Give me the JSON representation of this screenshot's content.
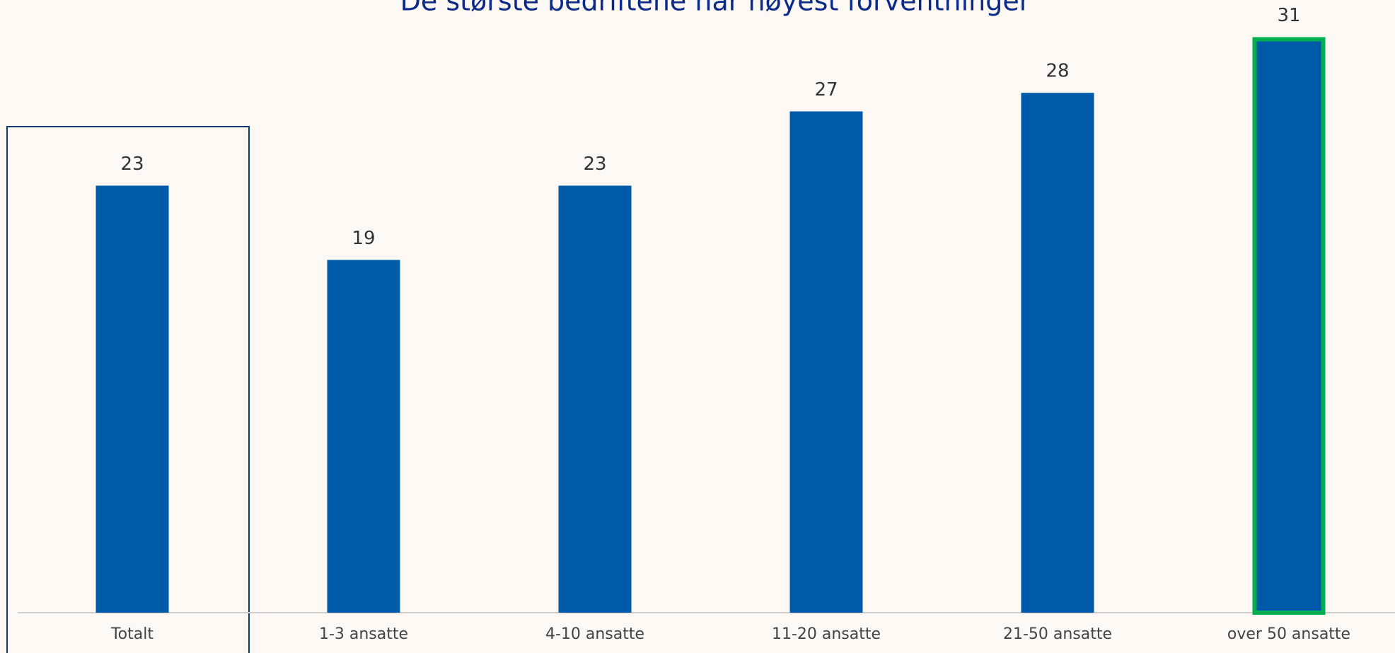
{
  "chart_data": {
    "type": "bar",
    "title": "De største bedriftene har høyest forventninger",
    "categories": [
      "Totalt",
      "1-3 ansatte",
      "4-10 ansatte",
      "11-20 ansatte",
      "21-50 ansatte",
      "over 50 ansatte"
    ],
    "values": [
      23,
      19,
      23,
      27,
      28,
      31
    ],
    "color": "#005aa7",
    "ylim": [
      0,
      33
    ]
  }
}
